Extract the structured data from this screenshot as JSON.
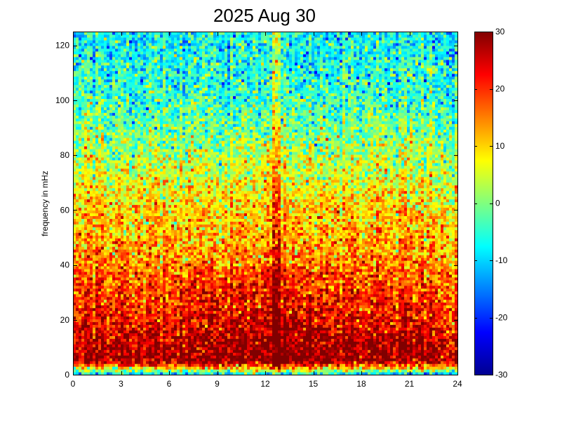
{
  "chart_data": {
    "type": "heatmap",
    "title": "2025 Aug 30",
    "xlabel": "",
    "ylabel": "frequency in mHz",
    "xlim": [
      0,
      24
    ],
    "ylim": [
      0,
      125
    ],
    "x_ticks": [
      0,
      3,
      6,
      9,
      12,
      15,
      18,
      21,
      24
    ],
    "y_ticks": [
      0,
      20,
      40,
      60,
      80,
      100,
      120
    ],
    "colorbar": {
      "colormap": "jet",
      "range": [
        -30,
        30
      ],
      "ticks": [
        -30,
        -20,
        -10,
        0,
        10,
        20,
        30
      ]
    },
    "grid": false,
    "power_profile_by_frequency": [
      {
        "freq": 0,
        "level": -15
      },
      {
        "freq": 2,
        "level": 5
      },
      {
        "freq": 5,
        "level": 28
      },
      {
        "freq": 10,
        "level": 27
      },
      {
        "freq": 20,
        "level": 22
      },
      {
        "freq": 30,
        "level": 19
      },
      {
        "freq": 40,
        "level": 15
      },
      {
        "freq": 60,
        "level": 10
      },
      {
        "freq": 80,
        "level": 3
      },
      {
        "freq": 100,
        "level": -4
      },
      {
        "freq": 125,
        "level": -8
      }
    ],
    "features": [
      {
        "type": "vertical_streak",
        "x": 12.7,
        "freq_range": [
          0,
          125
        ],
        "level_boost": 10
      }
    ]
  }
}
